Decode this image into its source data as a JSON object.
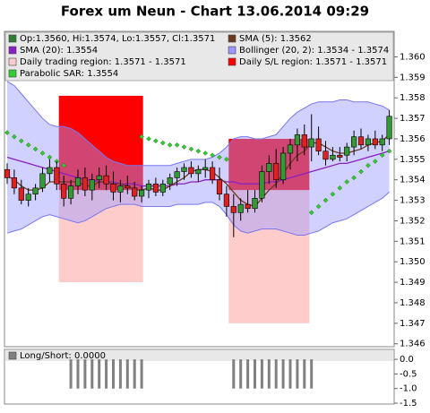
{
  "chart_data": {
    "type": "candlestick",
    "title": "Forex um Neun - Chart 13.06.2014 09:29",
    "legend": [
      {
        "label": "Op:1.3560, Hi:1.3574, Lo:1.3557, Cl:1.3571",
        "color": "#2e7d32"
      },
      {
        "label": "SMA (5): 1.3562",
        "color": "#6b3a1e"
      },
      {
        "label": "SMA (20): 1.3554",
        "color": "#8a1fc4"
      },
      {
        "label": "Bollinger (20, 2): 1.3534 - 1.3574",
        "color": "#9999ff"
      },
      {
        "label": "Daily trading region: 1.3571 - 1.3571",
        "color": "#ffcccc"
      },
      {
        "label": "Daily S/L region: 1.3571 - 1.3571",
        "color": "#ff0000"
      },
      {
        "label": "Parabolic SAR: 1.3554",
        "color": "#33cc33"
      }
    ],
    "ylim": [
      1.3459,
      1.3612
    ],
    "yticks": [
      1.346,
      1.347,
      1.348,
      1.349,
      {
        "value": 1.35,
        "label": "1.350"
      },
      1.351,
      1.352,
      1.353,
      1.354,
      1.355,
      1.356,
      1.357,
      1.358,
      1.359,
      {
        "value": 1.36,
        "label": "1.360"
      }
    ],
    "up_color": "#339933",
    "down_color": "#dd2222",
    "candles": [
      [
        1.3545,
        1.3548,
        1.3538,
        1.3541
      ],
      [
        1.3541,
        1.3545,
        1.3533,
        1.3536
      ],
      [
        1.3536,
        1.354,
        1.3528,
        1.353
      ],
      [
        1.353,
        1.3536,
        1.3527,
        1.3533
      ],
      [
        1.3533,
        1.3538,
        1.353,
        1.3536
      ],
      [
        1.3536,
        1.3546,
        1.3534,
        1.3543
      ],
      [
        1.3543,
        1.355,
        1.3539,
        1.3546
      ],
      [
        1.3546,
        1.3549,
        1.3535,
        1.3538
      ],
      [
        1.3538,
        1.3542,
        1.3527,
        1.3531
      ],
      [
        1.3531,
        1.354,
        1.3528,
        1.3537
      ],
      [
        1.3537,
        1.3545,
        1.3533,
        1.3541
      ],
      [
        1.3541,
        1.3546,
        1.3532,
        1.3535
      ],
      [
        1.3535,
        1.3543,
        1.353,
        1.354
      ],
      [
        1.354,
        1.3546,
        1.3536,
        1.3542
      ],
      [
        1.3542,
        1.3547,
        1.3535,
        1.3538
      ],
      [
        1.3538,
        1.3544,
        1.353,
        1.3534
      ],
      [
        1.3534,
        1.354,
        1.3529,
        1.3537
      ],
      [
        1.3537,
        1.3542,
        1.3533,
        1.3536
      ],
      [
        1.3536,
        1.3539,
        1.353,
        1.3532
      ],
      [
        1.3532,
        1.3537,
        1.3529,
        1.3535
      ],
      [
        1.3535,
        1.354,
        1.3531,
        1.3538
      ],
      [
        1.3538,
        1.3541,
        1.3532,
        1.3534
      ],
      [
        1.3534,
        1.354,
        1.3532,
        1.3538
      ],
      [
        1.3538,
        1.3543,
        1.3535,
        1.3541
      ],
      [
        1.3541,
        1.3546,
        1.3537,
        1.3544
      ],
      [
        1.3544,
        1.3548,
        1.354,
        1.3546
      ],
      [
        1.3546,
        1.3549,
        1.3541,
        1.3543
      ],
      [
        1.3543,
        1.3547,
        1.3539,
        1.3545
      ],
      [
        1.3545,
        1.355,
        1.3541,
        1.3546
      ],
      [
        1.3546,
        1.3549,
        1.3538,
        1.354
      ],
      [
        1.354,
        1.3546,
        1.353,
        1.3533
      ],
      [
        1.3533,
        1.3537,
        1.3522,
        1.3527
      ],
      [
        1.3527,
        1.3533,
        1.3512,
        1.3524
      ],
      [
        1.3524,
        1.3531,
        1.352,
        1.3528
      ],
      [
        1.3528,
        1.3535,
        1.3524,
        1.3526
      ],
      [
        1.3526,
        1.3535,
        1.3524,
        1.3531
      ],
      [
        1.3531,
        1.3547,
        1.3529,
        1.3544
      ],
      [
        1.3544,
        1.3552,
        1.3538,
        1.3548
      ],
      [
        1.3548,
        1.3555,
        1.3536,
        1.354
      ],
      [
        1.354,
        1.3556,
        1.3538,
        1.3553
      ],
      [
        1.3553,
        1.356,
        1.3545,
        1.3557
      ],
      [
        1.3557,
        1.3565,
        1.3549,
        1.3562
      ],
      [
        1.3562,
        1.3567,
        1.3552,
        1.3556
      ],
      [
        1.3556,
        1.3572,
        1.3549,
        1.356
      ],
      [
        1.356,
        1.3566,
        1.3552,
        1.3554
      ],
      [
        1.3554,
        1.3559,
        1.3547,
        1.355
      ],
      [
        1.355,
        1.3556,
        1.3549,
        1.3552
      ],
      [
        1.3552,
        1.3556,
        1.3549,
        1.3551
      ],
      [
        1.3552,
        1.3558,
        1.3549,
        1.3556
      ],
      [
        1.3556,
        1.3564,
        1.3552,
        1.3561
      ],
      [
        1.3561,
        1.3565,
        1.3555,
        1.3557
      ],
      [
        1.3557,
        1.3562,
        1.3554,
        1.356
      ],
      [
        1.356,
        1.3564,
        1.3555,
        1.3557
      ],
      [
        1.3557,
        1.3562,
        1.3554,
        1.356
      ],
      [
        1.356,
        1.3574,
        1.3557,
        1.3571
      ]
    ],
    "sma5": [
      1.3542,
      1.354,
      1.3537,
      1.3535,
      1.3535,
      1.3536,
      1.3539,
      1.3539,
      1.3539,
      1.3539,
      1.3539,
      1.3537,
      1.3537,
      1.3539,
      1.3539,
      1.3538,
      1.3538,
      1.3537,
      1.3535,
      1.3535,
      1.3536,
      1.3535,
      1.3535,
      1.3537,
      1.3539,
      1.3541,
      1.3544,
      1.3545,
      1.3545,
      1.3544,
      1.3541,
      1.3538,
      1.3534,
      1.353,
      1.3528,
      1.3527,
      1.3531,
      1.3535,
      1.3538,
      1.3543,
      1.3548,
      1.3552,
      1.3554,
      1.3558,
      1.3558,
      1.3556,
      1.3554,
      1.3553,
      1.3553,
      1.3554,
      1.3555,
      1.3557,
      1.3558,
      1.3559,
      1.3562
    ],
    "sma20": [
      1.3551,
      1.355,
      1.3549,
      1.3548,
      1.3547,
      1.3546,
      1.3545,
      1.3544,
      1.3543,
      1.3542,
      1.3541,
      1.354,
      1.354,
      1.3539,
      1.3539,
      1.3539,
      1.3538,
      1.3538,
      1.3538,
      1.3537,
      1.3537,
      1.3537,
      1.3537,
      1.3537,
      1.3538,
      1.3538,
      1.3539,
      1.3539,
      1.354,
      1.354,
      1.354,
      1.3539,
      1.3539,
      1.3538,
      1.3538,
      1.3538,
      1.3538,
      1.3539,
      1.3539,
      1.354,
      1.3541,
      1.3542,
      1.3543,
      1.3544,
      1.3545,
      1.3546,
      1.3547,
      1.3548,
      1.3548,
      1.3549,
      1.355,
      1.3551,
      1.3552,
      1.3553,
      1.3554
    ],
    "bb_upper": [
      1.3588,
      1.3586,
      1.3582,
      1.3578,
      1.3574,
      1.357,
      1.3567,
      1.3566,
      1.3566,
      1.3565,
      1.3563,
      1.356,
      1.3557,
      1.3554,
      1.3551,
      1.3549,
      1.3548,
      1.3547,
      1.3547,
      1.3547,
      1.3547,
      1.3547,
      1.3547,
      1.3547,
      1.3548,
      1.3549,
      1.355,
      1.355,
      1.355,
      1.3551,
      1.3553,
      1.3556,
      1.356,
      1.3561,
      1.3561,
      1.356,
      1.356,
      1.3561,
      1.3562,
      1.3566,
      1.357,
      1.3573,
      1.3575,
      1.3577,
      1.3578,
      1.3578,
      1.3578,
      1.3579,
      1.3579,
      1.3578,
      1.3578,
      1.3578,
      1.3577,
      1.3576,
      1.3574
    ],
    "bb_lower": [
      1.3514,
      1.3515,
      1.3516,
      1.3518,
      1.352,
      1.3522,
      1.3523,
      1.3522,
      1.3521,
      1.352,
      1.3519,
      1.352,
      1.3522,
      1.3524,
      1.3526,
      1.3527,
      1.3528,
      1.3528,
      1.3528,
      1.3527,
      1.3527,
      1.3527,
      1.3527,
      1.3527,
      1.3528,
      1.3528,
      1.3528,
      1.3528,
      1.3529,
      1.3529,
      1.3527,
      1.3523,
      1.3518,
      1.3515,
      1.3514,
      1.3515,
      1.3516,
      1.3516,
      1.3516,
      1.3515,
      1.3514,
      1.3513,
      1.3513,
      1.3514,
      1.3515,
      1.3517,
      1.3519,
      1.352,
      1.3521,
      1.3523,
      1.3525,
      1.3527,
      1.3529,
      1.3531,
      1.3534
    ],
    "sar": [
      1.3563,
      1.3561,
      1.3559,
      1.3557,
      1.3555,
      1.3553,
      1.3551,
      1.3549,
      1.3547,
      null,
      null,
      null,
      null,
      null,
      null,
      null,
      null,
      null,
      null,
      1.3561,
      1.356,
      1.3559,
      1.3558,
      1.3557,
      1.3557,
      1.3556,
      1.3555,
      1.3554,
      1.3553,
      1.3552,
      1.3551,
      1.355,
      null,
      null,
      null,
      null,
      null,
      null,
      null,
      null,
      null,
      null,
      null,
      1.3524,
      1.3527,
      1.353,
      1.3533,
      1.3536,
      1.3539,
      1.3541,
      1.3544,
      1.3547,
      1.3549,
      1.3552,
      1.3554
    ],
    "regions": [
      {
        "x": [
          7.3,
          19.2
        ],
        "sl": [
          1.3581,
          1.3535
        ],
        "trading": [
          1.3535,
          1.349
        ]
      },
      {
        "x": [
          31.3,
          42.7
        ],
        "sl": [
          1.356,
          1.3535
        ],
        "trading": [
          1.3535,
          1.347
        ]
      }
    ],
    "long_short": {
      "legend": "Long/Short: 0.0000",
      "color": "#808080",
      "ylim": [
        -1.53,
        0.34
      ],
      "yticks": [
        {
          "value": 0,
          "label": "0.0"
        },
        -0.5,
        {
          "value": -1,
          "label": "-1.0"
        },
        -1.5
      ],
      "values": [
        0,
        0,
        0,
        0,
        0,
        0,
        0,
        0,
        0,
        -1,
        -1,
        -1,
        -1,
        -1,
        -1,
        -1,
        -1,
        -1,
        -1,
        -1,
        0,
        0,
        0,
        0,
        0,
        0,
        0,
        0,
        0,
        0,
        0,
        0,
        -1,
        -1,
        -1,
        -1,
        -1,
        -1,
        -1,
        -1,
        -1,
        -1,
        -1,
        -1,
        0,
        0,
        0,
        0,
        0,
        0,
        0,
        0,
        0,
        0,
        0
      ]
    }
  }
}
